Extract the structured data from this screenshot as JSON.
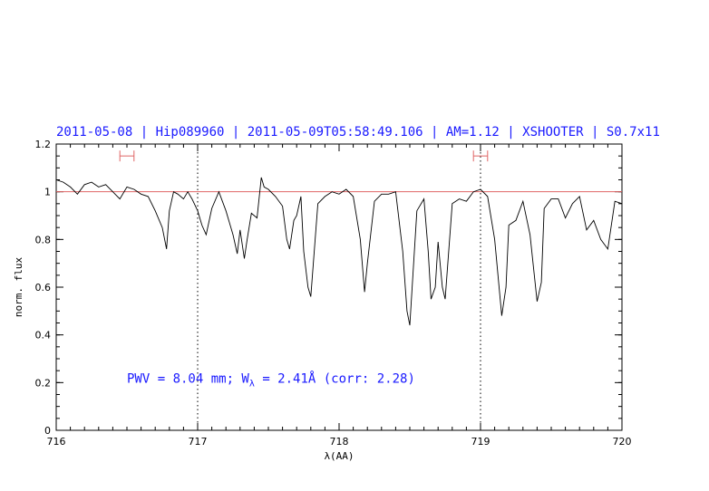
{
  "chart_data": {
    "type": "line",
    "title": "2011-05-08 | Hip089960 | 2011-05-09T05:58:49.106 | AM=1.12 | XSHOOTER | S0.7x11",
    "xlabel": "λ(AA)",
    "ylabel": "norm. flux",
    "xlim": [
      716,
      720
    ],
    "ylim": [
      0,
      1.2
    ],
    "x_ticks": [
      "716",
      "717",
      "718",
      "719",
      "720"
    ],
    "y_ticks": [
      "0",
      "0.2",
      "0.4",
      "0.6",
      "0.8",
      "1",
      "1.2"
    ],
    "reference_line": {
      "y": 1.0,
      "color": "#e06666"
    },
    "vertical_markers": [
      717.0,
      719.0
    ],
    "continuum_windows": [
      [
        716.45,
        716.55
      ],
      [
        718.95,
        719.05
      ]
    ],
    "annotation": {
      "prefix": "PWV = 8.04 mm; W",
      "subscript": "λ",
      "suffix": " = 2.41Å (corr: 2.28)",
      "x": 716.5,
      "y": 0.2
    },
    "series": [
      {
        "color": "#000000",
        "x": [
          716.0,
          716.05,
          716.1,
          716.15,
          716.2,
          716.25,
          716.3,
          716.35,
          716.4,
          716.45,
          716.5,
          716.55,
          716.6,
          716.65,
          716.7,
          716.75,
          716.78,
          716.8,
          716.83,
          716.86,
          716.9,
          716.93,
          716.96,
          717.0,
          717.03,
          717.06,
          717.1,
          717.15,
          717.2,
          717.25,
          717.28,
          717.3,
          717.33,
          717.35,
          717.38,
          717.42,
          717.45,
          717.47,
          717.5,
          717.55,
          717.6,
          717.63,
          717.65,
          717.68,
          717.7,
          717.73,
          717.75,
          717.78,
          717.8,
          717.85,
          717.9,
          717.95,
          718.0,
          718.05,
          718.1,
          718.15,
          718.18,
          718.2,
          718.25,
          718.3,
          718.35,
          718.4,
          718.45,
          718.48,
          718.5,
          718.55,
          718.6,
          718.63,
          718.65,
          718.68,
          718.7,
          718.73,
          718.75,
          718.8,
          718.85,
          718.9,
          718.95,
          719.0,
          719.05,
          719.1,
          719.15,
          719.18,
          719.2,
          719.25,
          719.3,
          719.35,
          719.4,
          719.43,
          719.45,
          719.5,
          719.55,
          719.6,
          719.65,
          719.7,
          719.75,
          719.8,
          719.85,
          719.9,
          719.95,
          720.0
        ],
        "y": [
          1.05,
          1.04,
          1.02,
          0.99,
          1.03,
          1.04,
          1.02,
          1.03,
          1.0,
          0.97,
          1.02,
          1.01,
          0.99,
          0.98,
          0.92,
          0.85,
          0.76,
          0.92,
          1.0,
          0.99,
          0.97,
          1.0,
          0.97,
          0.92,
          0.86,
          0.82,
          0.93,
          1.0,
          0.92,
          0.82,
          0.74,
          0.84,
          0.72,
          0.8,
          0.91,
          0.89,
          1.06,
          1.02,
          1.01,
          0.98,
          0.94,
          0.8,
          0.76,
          0.88,
          0.9,
          0.98,
          0.75,
          0.6,
          0.56,
          0.95,
          0.98,
          1.0,
          0.99,
          1.01,
          0.98,
          0.8,
          0.58,
          0.7,
          0.96,
          0.99,
          0.99,
          1.0,
          0.75,
          0.5,
          0.44,
          0.92,
          0.97,
          0.75,
          0.55,
          0.6,
          0.79,
          0.6,
          0.55,
          0.95,
          0.97,
          0.96,
          1.0,
          1.01,
          0.98,
          0.8,
          0.48,
          0.6,
          0.86,
          0.88,
          0.96,
          0.82,
          0.54,
          0.62,
          0.93,
          0.97,
          0.97,
          0.89,
          0.95,
          0.98,
          0.84,
          0.88,
          0.8,
          0.76,
          0.96,
          0.95
        ]
      }
    ]
  }
}
